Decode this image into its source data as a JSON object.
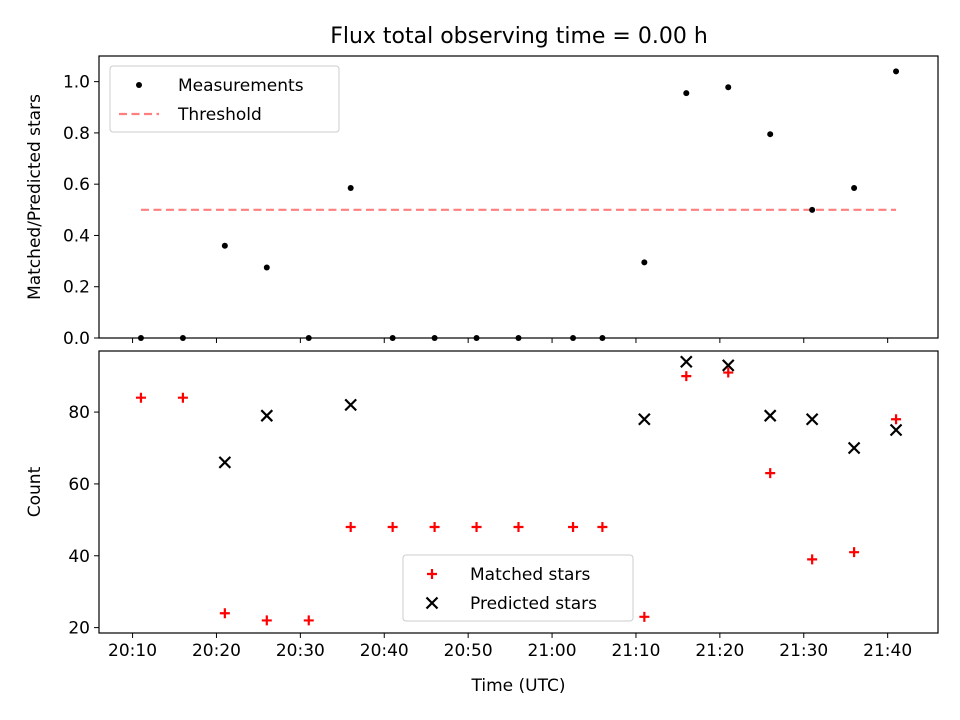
{
  "figure": {
    "title": "Flux total observing time = 0.00 h"
  },
  "chart_data": [
    {
      "type": "scatter",
      "ylabel": "Matched/Predicted stars",
      "ylim": [
        0,
        1.1
      ],
      "yticks": [
        0.0,
        0.2,
        0.4,
        0.6,
        0.8,
        1.0
      ],
      "ytick_labels": [
        "0.0",
        "0.2",
        "0.4",
        "0.6",
        "0.8",
        "1.0"
      ],
      "legend_position": "top-left",
      "series": [
        {
          "name": "Measurements",
          "color": "#000000",
          "marker": "dot",
          "x": [
            "20:11",
            "20:16",
            "20:21",
            "20:26",
            "20:31",
            "20:36",
            "20:41",
            "20:46",
            "20:51",
            "20:56",
            "21:02.5",
            "21:06",
            "21:11",
            "21:16",
            "21:21",
            "21:26",
            "21:31",
            "21:36",
            "21:41"
          ],
          "y": [
            0.0,
            0.0,
            0.36,
            0.275,
            0.0,
            0.585,
            0.0,
            0.0,
            0.0,
            0.0,
            0.0,
            0.0,
            0.295,
            0.955,
            0.978,
            0.795,
            0.5,
            0.585,
            1.04
          ]
        },
        {
          "name": "Threshold",
          "color": "#ff7f7f",
          "style": "dashed",
          "x": [
            "20:11",
            "21:41"
          ],
          "y": [
            0.5,
            0.5
          ]
        }
      ]
    },
    {
      "type": "scatter",
      "xlabel": "Time (UTC)",
      "ylabel": "Count",
      "ylim": [
        18.5,
        97
      ],
      "yticks": [
        20,
        40,
        60,
        80
      ],
      "xticks": [
        "20:10",
        "20:20",
        "20:30",
        "20:40",
        "20:50",
        "21:00",
        "21:10",
        "21:20",
        "21:30",
        "21:40"
      ],
      "xlim": [
        "20:06",
        "21:46"
      ],
      "legend_position": "lower-center",
      "series": [
        {
          "name": "Matched stars",
          "color": "#ff0000",
          "marker": "plus",
          "x": [
            "20:11",
            "20:16",
            "20:21",
            "20:26",
            "20:31",
            "20:36",
            "20:41",
            "20:46",
            "20:51",
            "20:56",
            "21:02.5",
            "21:06",
            "21:11",
            "21:16",
            "21:21",
            "21:26",
            "21:31",
            "21:36",
            "21:41"
          ],
          "y": [
            84,
            84,
            24,
            22,
            22,
            48,
            48,
            48,
            48,
            48,
            48,
            48,
            23,
            90,
            91,
            63,
            39,
            41,
            78
          ]
        },
        {
          "name": "Predicted stars",
          "color": "#000000",
          "marker": "cross",
          "x": [
            "20:21",
            "20:26",
            "20:36",
            "21:11",
            "21:16",
            "21:21",
            "21:26",
            "21:31",
            "21:36",
            "21:41"
          ],
          "y": [
            66,
            79,
            82,
            78,
            94,
            93,
            79,
            78,
            70,
            75
          ]
        }
      ]
    }
  ]
}
